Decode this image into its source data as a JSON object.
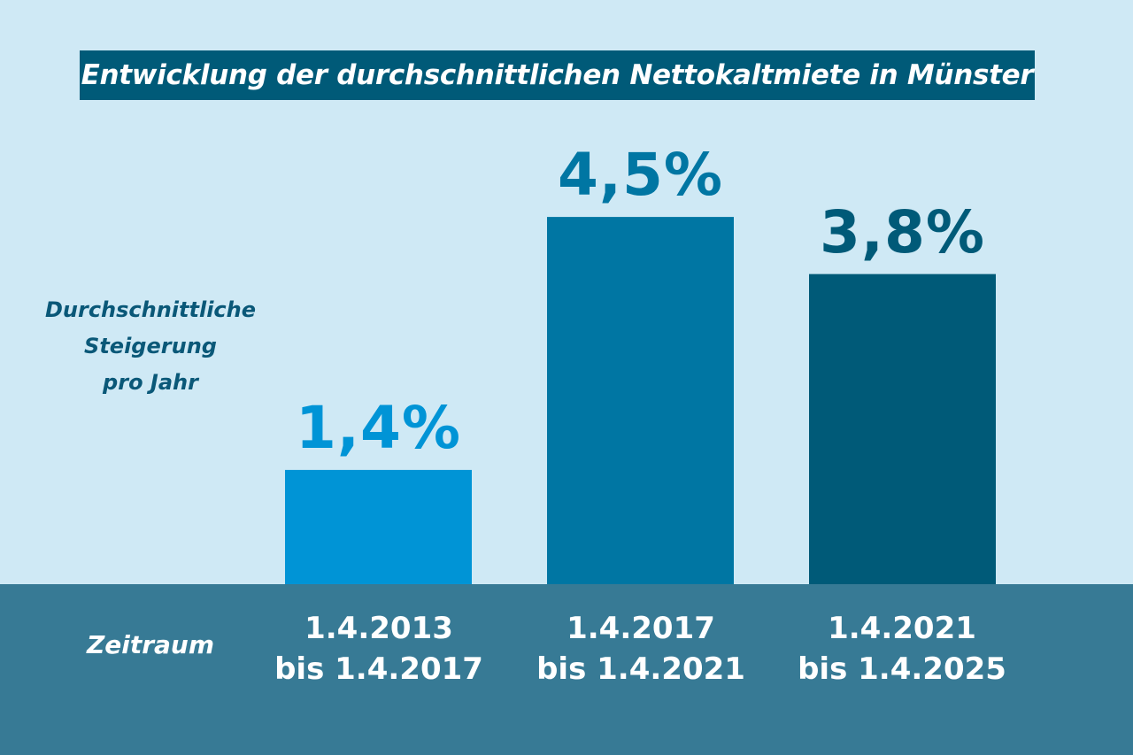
{
  "chart_data": {
    "type": "bar",
    "title": "Entwicklung der durchschnittlichen Nettokaltmiete in Münster",
    "ylabel_lines": [
      "Durchschnittliche",
      "Steigerung",
      "pro Jahr"
    ],
    "xlabel": "Zeitraum",
    "categories": [
      [
        "1.4.2013",
        "bis 1.4.2017"
      ],
      [
        "1.4.2017",
        "bis 1.4.2021"
      ],
      [
        "1.4.2021",
        "bis 1.4.2025"
      ]
    ],
    "values": [
      1.4,
      4.5,
      3.8
    ],
    "value_labels": [
      "1,4%",
      "4,5%",
      "3,8%"
    ],
    "unit": "%",
    "bar_colors": [
      "#0094d6",
      "#0076a3",
      "#005a78"
    ],
    "label_colors": [
      "#0094d6",
      "#0076a3",
      "#005a78"
    ],
    "ylim": [
      0,
      5
    ],
    "grid": false,
    "legend": "none"
  },
  "colors": {
    "background": "#cfe9f5",
    "title_background": "#005a78",
    "axis_band": "#377a95",
    "title_text": "#ffffff",
    "ylabel_text": "#0a5878"
  }
}
